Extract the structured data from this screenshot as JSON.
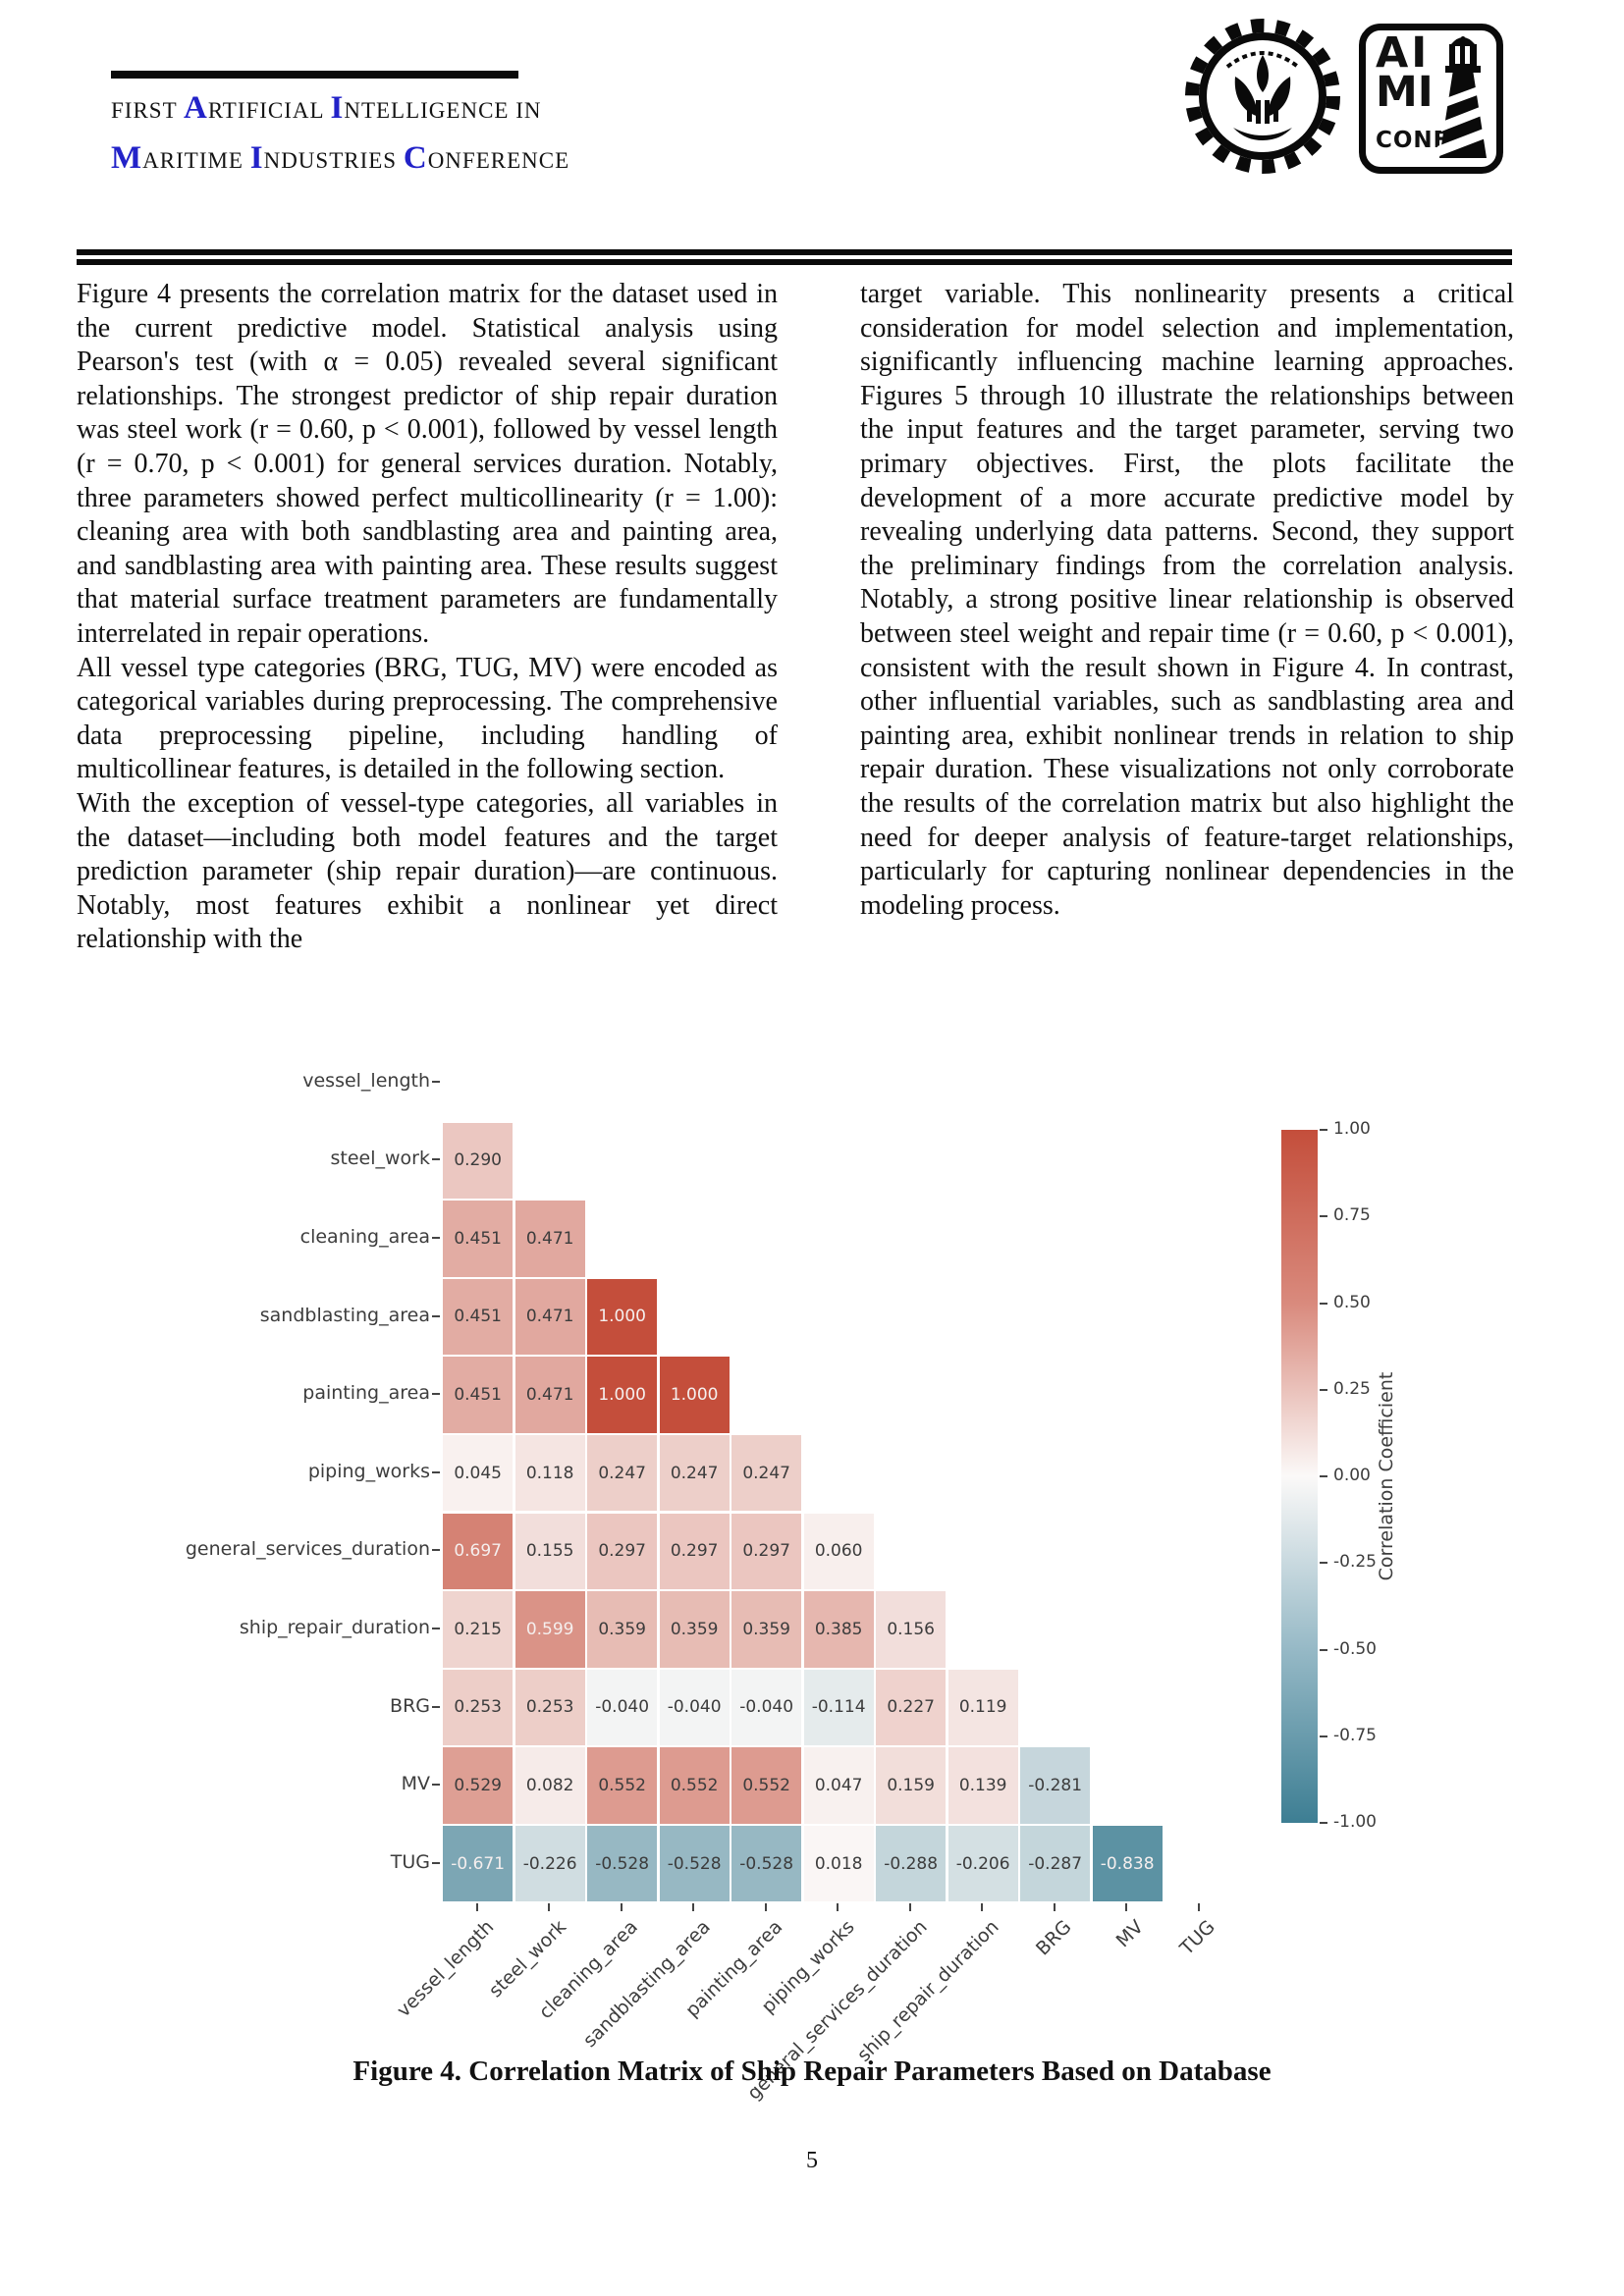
{
  "colors": {
    "accent_blue": "#2222c8",
    "ink": "#0a0a0a"
  },
  "header": {
    "title_line1_segments": [
      {
        "text": "FIRST ",
        "accent": false
      },
      {
        "text": "A",
        "accent": true
      },
      {
        "text": "RTIFICIAL ",
        "accent": false
      },
      {
        "text": "I",
        "accent": true
      },
      {
        "text": "NTELLIGENCE IN",
        "accent": false
      }
    ],
    "title_line2_segments": [
      {
        "text": "M",
        "accent": true
      },
      {
        "text": "ARITIME ",
        "accent": false
      },
      {
        "text": "I",
        "accent": true
      },
      {
        "text": "NDUSTRIES ",
        "accent": false
      },
      {
        "text": "C",
        "accent": true
      },
      {
        "text": "ONFERENCE",
        "accent": false
      }
    ],
    "conference_logo": {
      "line1": "AI",
      "line2": "MI",
      "line3": "CONF"
    }
  },
  "article": {
    "left_column_paragraphs": [
      "Figure 4 presents the correlation matrix for the dataset used in the current predictive model. Statistical analysis using Pearson's test (with α = 0.05) revealed several significant relationships. The strongest predictor of ship repair duration was steel work (r = 0.60, p < 0.001), followed by vessel length (r = 0.70, p < 0.001) for general services duration. Notably, three parameters showed perfect multicollinearity (r = 1.00): cleaning area with both sandblasting area and painting area, and sandblasting area with painting area. These results suggest that material surface treatment parameters are fundamentally interrelated in repair operations.",
      "All vessel type categories (BRG, TUG, MV) were encoded as categorical variables during preprocessing. The comprehensive data preprocessing pipeline, including handling of multicollinear features, is detailed in the following section.",
      "With the exception of vessel-type categories, all variables in the dataset—including both model features and the target prediction parameter (ship repair duration)—are continuous. Notably, most features exhibit a nonlinear yet direct relationship with the"
    ],
    "right_column_paragraphs": [
      "target variable. This nonlinearity presents a critical consideration for model selection and implementation, significantly influencing machine learning approaches. Figures 5 through 10 illustrate the relationships between the input features and the target parameter, serving two primary objectives. First, the plots facilitate the development of a more accurate predictive model by revealing underlying data patterns. Second, they support the preliminary findings from the correlation analysis. Notably, a strong positive linear relationship is observed between steel weight and repair time (r = 0.60, p < 0.001), consistent with the result shown in Figure 4. In contrast, other influential variables, such as sandblasting area and painting area, exhibit nonlinear trends in relation to ship repair duration. These visualizations not only corroborate the results of the correlation matrix but also highlight the need for deeper analysis of feature-target relationships, particularly for capturing nonlinear dependencies in the modeling process."
    ]
  },
  "figure_caption": "Figure 4. Correlation Matrix of Ship Repair Parameters Based on Database",
  "page_number": "5",
  "chart_data": {
    "type": "heatmap",
    "title": "",
    "mask": "upper triangle and diagonal hidden (lower-triangular correlation matrix)",
    "variables": [
      "vessel_length",
      "steel_work",
      "cleaning_area",
      "sandblasting_area",
      "painting_area",
      "piping_works",
      "general_services_duration",
      "ship_repair_duration",
      "BRG",
      "MV",
      "TUG"
    ],
    "rows": [
      {
        "label": "vessel_length",
        "values": []
      },
      {
        "label": "steel_work",
        "values": [
          0.29
        ]
      },
      {
        "label": "cleaning_area",
        "values": [
          0.451,
          0.471
        ]
      },
      {
        "label": "sandblasting_area",
        "values": [
          0.451,
          0.471,
          1.0
        ]
      },
      {
        "label": "painting_area",
        "values": [
          0.451,
          0.471,
          1.0,
          1.0
        ]
      },
      {
        "label": "piping_works",
        "values": [
          0.045,
          0.118,
          0.247,
          0.247,
          0.247
        ]
      },
      {
        "label": "general_services_duration",
        "values": [
          0.697,
          0.155,
          0.297,
          0.297,
          0.297,
          0.06
        ]
      },
      {
        "label": "ship_repair_duration",
        "values": [
          0.215,
          0.599,
          0.359,
          0.359,
          0.359,
          0.385,
          0.156
        ]
      },
      {
        "label": "BRG",
        "values": [
          0.253,
          0.253,
          -0.04,
          -0.04,
          -0.04,
          -0.114,
          0.227,
          0.119
        ]
      },
      {
        "label": "MV",
        "values": [
          0.529,
          0.082,
          0.552,
          0.552,
          0.552,
          0.047,
          0.159,
          0.139,
          -0.281
        ]
      },
      {
        "label": "TUG",
        "values": [
          -0.671,
          -0.226,
          -0.528,
          -0.528,
          -0.528,
          0.018,
          -0.288,
          -0.206,
          -0.287,
          -0.838
        ]
      }
    ],
    "value_decimals": 3,
    "colorbar": {
      "label": "Correlation Coefficient",
      "tick_values": [
        1.0,
        0.75,
        0.5,
        0.25,
        0.0,
        -0.25,
        -0.5,
        -0.75,
        -1.0
      ],
      "tick_labels": [
        "1.00",
        "0.75",
        "0.50",
        "0.25",
        "0.00",
        "-0.25",
        "-0.50",
        "-0.75",
        "-1.00"
      ],
      "range": [
        -1,
        1
      ],
      "position": "right"
    },
    "palette": {
      "positive_max": "#c44e3b",
      "midpoint": "#fbf9f8",
      "negative_max": "#3d7e93"
    }
  }
}
